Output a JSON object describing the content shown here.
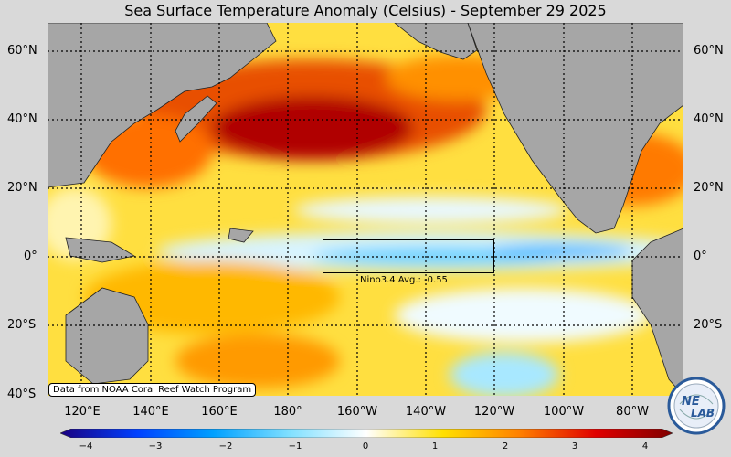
{
  "title": "Sea Surface Temperature Anomaly (Celsius) - September 29 2025",
  "lat_labels_left": [
    "60°N",
    "40°N",
    "20°N",
    "0°",
    "20°S",
    "40°S"
  ],
  "lat_labels_right": [
    "60°N",
    "40°N",
    "20°N",
    "0°",
    "20°S"
  ],
  "lon_labels": [
    "120°E",
    "140°E",
    "160°E",
    "180°",
    "160°W",
    "140°W",
    "120°W",
    "100°W",
    "80°W"
  ],
  "nino_region": {
    "label": "Nino3.4 Avg.: -0.55",
    "avg_anomaly": -0.55
  },
  "credit": "Data from NOAA Coral Reef Watch Program",
  "logo_text": {
    "line1": "NE",
    "line2": "LAB"
  },
  "colorbar": {
    "ticks": [
      "−4",
      "−3",
      "−2",
      "−1",
      "0",
      "1",
      "2",
      "3",
      "4"
    ],
    "range": [
      -4,
      4
    ],
    "colors": [
      "#1a0080",
      "#0040ff",
      "#00a0ff",
      "#80e0ff",
      "#ffffff",
      "#ffe000",
      "#ff8000",
      "#e00000",
      "#800000"
    ]
  },
  "colors": {
    "land": "#a6a6a6",
    "background": "#d9d9d9"
  }
}
